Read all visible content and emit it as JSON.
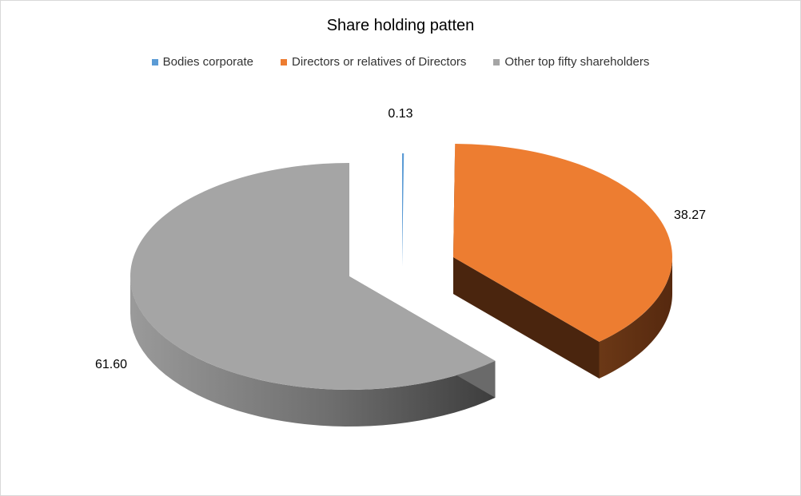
{
  "chart_data": {
    "type": "pie",
    "title": "Share holding patten",
    "legend_position": "top",
    "style": "3d-exploded",
    "slices": [
      {
        "label": "Bodies corporate",
        "value": 0.13,
        "value_label": "0.13",
        "color": "#5B9BD5"
      },
      {
        "label": "Directors or relatives of Directors",
        "value": 38.27,
        "value_label": "38.27",
        "color": "#ED7D31",
        "side_color": "#5E3113"
      },
      {
        "label": "Other top fifty shareholders",
        "value": 61.6,
        "value_label": "61.60",
        "color": "#A5A5A5",
        "side_color": "#6E6E6E"
      }
    ]
  }
}
